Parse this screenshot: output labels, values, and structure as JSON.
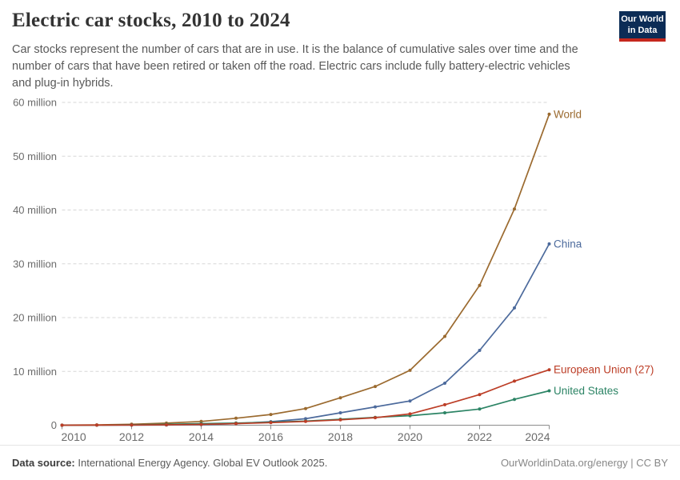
{
  "header": {
    "title": "Electric car stocks, 2010 to 2024",
    "subtitle_lines": [
      "Car stocks represent the number of cars that are in use. It is the balance of cumulative sales over time and the",
      "number of cars that have been retired or taken off the road. Electric cars include fully battery-electric vehicles",
      "and plug-in hybrids."
    ],
    "logo": {
      "line1": "Our World",
      "line2": "in Data"
    }
  },
  "chart_data": {
    "type": "line",
    "title": "Electric car stocks, 2010 to 2024",
    "x": [
      2010,
      2011,
      2012,
      2013,
      2014,
      2015,
      2016,
      2017,
      2018,
      2019,
      2020,
      2021,
      2022,
      2023,
      2024
    ],
    "unit": "million cars",
    "series": [
      {
        "name": "World",
        "color": "#9B6A2F",
        "values": [
          0.02,
          0.06,
          0.18,
          0.38,
          0.7,
          1.3,
          2.0,
          3.1,
          5.1,
          7.2,
          10.2,
          16.5,
          26.0,
          40.2,
          57.8
        ]
      },
      {
        "name": "China",
        "color": "#4C6A9C",
        "values": [
          0.0,
          0.01,
          0.02,
          0.03,
          0.1,
          0.3,
          0.65,
          1.2,
          2.3,
          3.4,
          4.5,
          7.8,
          13.9,
          21.8,
          33.7
        ]
      },
      {
        "name": "European Union (27)",
        "color": "#BC3D26",
        "values": [
          0.0,
          0.01,
          0.03,
          0.07,
          0.15,
          0.3,
          0.47,
          0.7,
          1.0,
          1.4,
          2.1,
          3.8,
          5.7,
          8.2,
          10.3
        ]
      },
      {
        "name": "United States",
        "color": "#2C8465",
        "values": [
          0.0,
          0.02,
          0.07,
          0.17,
          0.29,
          0.4,
          0.56,
          0.76,
          1.1,
          1.45,
          1.77,
          2.3,
          3.0,
          4.8,
          6.4
        ]
      }
    ],
    "ylim": [
      0,
      60
    ],
    "ytick_labels": [
      "0",
      "10 million",
      "20 million",
      "30 million",
      "40 million",
      "50 million",
      "60 million"
    ],
    "xtick_labels": [
      "2010",
      "2012",
      "2014",
      "2016",
      "2018",
      "2020",
      "2022",
      "2024"
    ],
    "grid": "horizontal-dashed",
    "legend_position": "end-of-line-labels"
  },
  "footer": {
    "source_label": "Data source:",
    "source_text": "International Energy Agency. Global EV Outlook 2025.",
    "credit": "OurWorldinData.org/energy | CC BY"
  }
}
